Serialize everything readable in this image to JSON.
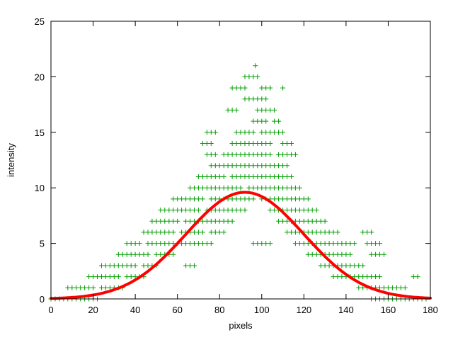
{
  "figure": {
    "background": "#ffffff"
  },
  "chart_data": {
    "type": "scatter",
    "title": "",
    "xlabel": "pixels",
    "ylabel": "intensity",
    "xlim": [
      0,
      180
    ],
    "ylim": [
      0,
      25
    ],
    "xticks": [
      0,
      20,
      40,
      60,
      80,
      100,
      120,
      140,
      160,
      180
    ],
    "yticks": [
      0,
      5,
      10,
      15,
      20,
      25
    ],
    "grid": false,
    "legend": "none",
    "marker": {
      "symbol": "plus",
      "color": "#009e00",
      "size": 3.5
    },
    "point_step": 2,
    "scatter_rows": [
      {
        "y": 0,
        "runs": [
          [
            0,
            22
          ],
          [
            152,
            179
          ]
        ]
      },
      {
        "y": 1,
        "runs": [
          [
            8,
            20
          ],
          [
            24,
            34
          ],
          [
            146,
            168
          ]
        ]
      },
      {
        "y": 2,
        "runs": [
          [
            18,
            32
          ],
          [
            36,
            44
          ],
          [
            134,
            156
          ],
          [
            172,
            174
          ]
        ]
      },
      {
        "y": 3,
        "runs": [
          [
            24,
            40
          ],
          [
            44,
            50
          ],
          [
            64,
            68
          ],
          [
            128,
            148
          ]
        ]
      },
      {
        "y": 4,
        "runs": [
          [
            32,
            46
          ],
          [
            50,
            58
          ],
          [
            122,
            142
          ],
          [
            152,
            158
          ]
        ]
      },
      {
        "y": 5,
        "runs": [
          [
            36,
            42
          ],
          [
            46,
            62
          ],
          [
            64,
            76
          ],
          [
            96,
            104
          ],
          [
            116,
            134
          ],
          [
            136,
            144
          ],
          [
            150,
            156
          ]
        ]
      },
      {
        "y": 6,
        "runs": [
          [
            44,
            58
          ],
          [
            62,
            72
          ],
          [
            76,
            82
          ],
          [
            112,
            126
          ],
          [
            128,
            136
          ],
          [
            148,
            152
          ]
        ]
      },
      {
        "y": 7,
        "runs": [
          [
            48,
            60
          ],
          [
            64,
            78
          ],
          [
            80,
            86
          ],
          [
            108,
            122
          ],
          [
            124,
            130
          ]
        ]
      },
      {
        "y": 8,
        "runs": [
          [
            52,
            70
          ],
          [
            74,
            84
          ],
          [
            86,
            92
          ],
          [
            104,
            118
          ],
          [
            120,
            126
          ]
        ]
      },
      {
        "y": 9,
        "runs": [
          [
            58,
            72
          ],
          [
            76,
            90
          ],
          [
            92,
            96
          ],
          [
            100,
            114
          ],
          [
            116,
            122
          ]
        ]
      },
      {
        "y": 10,
        "runs": [
          [
            66,
            80
          ],
          [
            82,
            90
          ],
          [
            94,
            106
          ],
          [
            108,
            118
          ]
        ]
      },
      {
        "y": 11,
        "runs": [
          [
            70,
            82
          ],
          [
            86,
            96
          ],
          [
            98,
            108
          ],
          [
            110,
            114
          ]
        ]
      },
      {
        "y": 12,
        "runs": [
          [
            76,
            88
          ],
          [
            90,
            100
          ],
          [
            102,
            112
          ]
        ]
      },
      {
        "y": 13,
        "runs": [
          [
            74,
            78
          ],
          [
            82,
            94
          ],
          [
            96,
            104
          ],
          [
            108,
            116
          ]
        ]
      },
      {
        "y": 14,
        "runs": [
          [
            72,
            76
          ],
          [
            86,
            98
          ],
          [
            100,
            104
          ],
          [
            110,
            114
          ]
        ]
      },
      {
        "y": 15,
        "runs": [
          [
            74,
            78
          ],
          [
            88,
            96
          ],
          [
            100,
            110
          ]
        ]
      },
      {
        "y": 16,
        "runs": [
          [
            96,
            102
          ],
          [
            106,
            108
          ]
        ]
      },
      {
        "y": 17,
        "runs": [
          [
            84,
            88
          ],
          [
            98,
            106
          ]
        ]
      },
      {
        "y": 18,
        "runs": [
          [
            92,
            102
          ]
        ]
      },
      {
        "y": 19,
        "runs": [
          [
            86,
            92
          ],
          [
            100,
            104
          ],
          [
            110,
            110
          ]
        ]
      },
      {
        "y": 20,
        "runs": [
          [
            92,
            98
          ]
        ]
      },
      {
        "y": 21,
        "runs": [
          [
            97,
            97
          ]
        ]
      }
    ],
    "fit_curve": {
      "type": "gaussian",
      "amplitude": 9.6,
      "mean": 92,
      "sigma": 28,
      "color": "#ff0000",
      "stroke_width": 4
    }
  }
}
